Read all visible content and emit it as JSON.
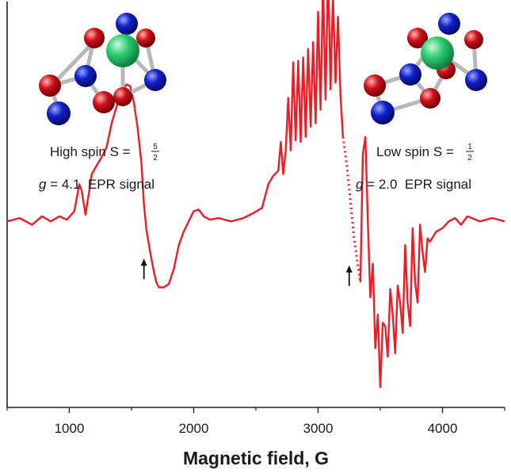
{
  "chart_data": {
    "type": "line",
    "xlabel": "Magnetic field, G",
    "ylabel": "",
    "xlim": [
      500,
      4500
    ],
    "ylim": [
      -1.1,
      1.3
    ],
    "x_ticks": [
      1000,
      2000,
      3000,
      4000
    ],
    "x_tick_labels": [
      "1000",
      "2000",
      "3000",
      "4000"
    ],
    "grid": false,
    "legend": "none",
    "series": [
      {
        "color": "#ee1c25",
        "line_style": "solid",
        "x": [
          500,
          600,
          700,
          780,
          850,
          920,
          980,
          1040,
          1080,
          1100,
          1130,
          1160,
          1180,
          1220,
          1260,
          1300,
          1340,
          1380,
          1420,
          1460,
          1490,
          1520,
          1550,
          1580,
          1600,
          1620,
          1650,
          1680,
          1700,
          1720,
          1760,
          1800,
          1840,
          1880,
          1920,
          1960,
          2000,
          2040,
          2080,
          2130,
          2200,
          2300,
          2400,
          2480,
          2550,
          2600,
          2640,
          2680,
          2700,
          2720,
          2740,
          2760,
          2780,
          2800,
          2820,
          2840,
          2860,
          2880,
          2900,
          2920,
          2940,
          2960,
          2980,
          3000,
          3020,
          3040,
          3060,
          3080,
          3100,
          3120,
          3140,
          3160,
          3180,
          3200
        ],
        "y": [
          0.0,
          0.02,
          -0.02,
          0.03,
          0.0,
          0.03,
          0.01,
          0.06,
          0.22,
          0.18,
          0.04,
          0.18,
          0.28,
          0.33,
          0.38,
          0.44,
          0.58,
          0.68,
          0.76,
          0.81,
          0.8,
          0.7,
          0.55,
          0.34,
          0.1,
          -0.05,
          -0.18,
          -0.3,
          -0.36,
          -0.39,
          -0.39,
          -0.37,
          -0.28,
          -0.14,
          -0.06,
          0.0,
          0.06,
          0.07,
          0.03,
          0.01,
          0.02,
          0.0,
          0.02,
          0.05,
          0.08,
          0.22,
          0.27,
          0.3,
          0.47,
          0.28,
          0.42,
          0.73,
          0.42,
          0.94,
          0.48,
          0.95,
          0.47,
          0.97,
          0.5,
          1.02,
          0.56,
          1.06,
          0.58,
          1.24,
          0.66,
          1.43,
          0.72,
          1.49,
          0.78,
          1.34,
          0.82,
          1.21,
          0.74,
          0.5
        ]
      },
      {
        "color": "#ee1c25",
        "line_style": "dotted",
        "x": [
          3200,
          3230,
          3260,
          3290,
          3320,
          3340
        ],
        "y": [
          0.5,
          0.34,
          0.12,
          -0.1,
          -0.26,
          -0.36
        ]
      },
      {
        "color": "#ee1c25",
        "line_style": "solid",
        "x": [
          3340,
          3360,
          3380,
          3400,
          3420,
          3440,
          3460,
          3480,
          3500,
          3520,
          3540,
          3560,
          3580,
          3600,
          3620,
          3640,
          3660,
          3680,
          3700,
          3720,
          3740,
          3760,
          3780,
          3800,
          3820,
          3840,
          3860,
          3880,
          3900,
          3950,
          4000,
          4050,
          4100,
          4150,
          4200,
          4300,
          4400,
          4500
        ],
        "y": [
          -0.36,
          0.4,
          0.5,
          0.0,
          -0.45,
          -0.25,
          -0.75,
          -0.55,
          -0.98,
          -0.6,
          -0.62,
          -0.8,
          -0.4,
          -0.55,
          -0.78,
          -0.38,
          -0.48,
          -0.66,
          -0.14,
          -0.48,
          -0.62,
          -0.04,
          -0.36,
          -0.48,
          -0.02,
          -0.18,
          -0.3,
          -0.1,
          -0.12,
          -0.06,
          -0.04,
          0.0,
          0.02,
          -0.02,
          0.03,
          0.0,
          0.02,
          0.0
        ]
      }
    ],
    "annotations": [
      {
        "kind": "arrow-up",
        "x": 1600,
        "y": -0.22
      },
      {
        "kind": "arrow-up",
        "x": 3250,
        "y": -0.26
      }
    ]
  },
  "labels": {
    "high_spin_prefix": "High spin S = ",
    "high_spin_num": "5",
    "high_spin_den": "2",
    "high_g_symbol": "g",
    "high_g_text": " = 4.1  EPR signal",
    "low_spin_prefix": "Low spin S = ",
    "low_spin_num": "1",
    "low_spin_den": "2",
    "low_g_symbol": "g",
    "low_g_text": " = 2.0  EPR signal"
  },
  "molecule_colors": {
    "metal": "#2ecc71",
    "red_atom": "#d0101a",
    "blue_atom": "#1020c8",
    "bond": "#b8b8b8"
  }
}
